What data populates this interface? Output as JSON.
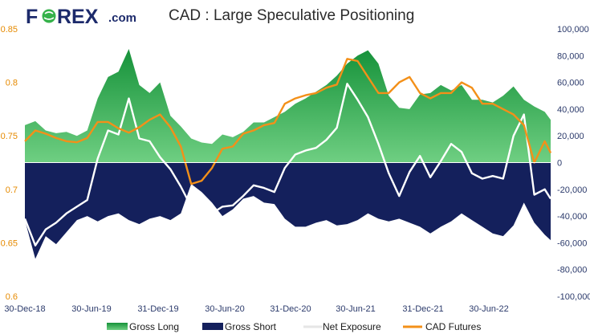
{
  "logo": {
    "text_before": "F",
    "text_after": "REX",
    "suffix": ".com"
  },
  "colors": {
    "logo_blue": "#1c2a6b",
    "logo_green": "#35b24a",
    "long_green": "#16923a",
    "long_green_light": "#6fcf82",
    "short_navy": "#14205c",
    "net_white": "#ffffff",
    "futures_orange": "#f39019",
    "left_axis": "#e68a00",
    "right_axis": "#2b3a6b",
    "date_axis": "#2b3a6b"
  },
  "chart_data": {
    "type": "area",
    "title": "CAD : Large Speculative Positioning",
    "x_tick_labels": [
      "30-Dec-18",
      "30-Jun-19",
      "31-Dec-19",
      "30-Jun-20",
      "31-Dec-20",
      "30-Jun-21",
      "31-Dec-21",
      "30-Jun-22"
    ],
    "x_range": [
      "2018-12-30",
      "2022-11-15"
    ],
    "left_axis": {
      "label": "",
      "ticks": [
        "0.85",
        "0.8",
        "0.75",
        "0.7",
        "0.65",
        "0.6"
      ],
      "ylim": [
        0.6,
        0.85
      ]
    },
    "right_axis": {
      "label": "",
      "ticks": [
        "100,000",
        "80,000",
        "60,000",
        "40,000",
        "20,000",
        "0",
        "-20,000",
        "-40,000",
        "-60,000",
        "-80,000",
        "-100,000"
      ],
      "ylim": [
        -100000,
        100000
      ]
    },
    "legend_position": "bottom",
    "x_dates": [
      "2018-12-30",
      "2019-01-27",
      "2019-02-24",
      "2019-03-24",
      "2019-04-21",
      "2019-05-19",
      "2019-06-16",
      "2019-07-14",
      "2019-08-11",
      "2019-09-08",
      "2019-10-06",
      "2019-11-03",
      "2019-12-01",
      "2019-12-29",
      "2020-01-26",
      "2020-02-23",
      "2020-03-22",
      "2020-04-19",
      "2020-05-17",
      "2020-06-14",
      "2020-07-12",
      "2020-08-09",
      "2020-09-06",
      "2020-10-04",
      "2020-11-01",
      "2020-11-29",
      "2020-12-27",
      "2021-01-24",
      "2021-02-21",
      "2021-03-21",
      "2021-04-18",
      "2021-05-16",
      "2021-06-13",
      "2021-07-11",
      "2021-08-08",
      "2021-09-05",
      "2021-10-03",
      "2021-10-31",
      "2021-11-28",
      "2021-12-26",
      "2022-01-23",
      "2022-02-20",
      "2022-03-20",
      "2022-04-17",
      "2022-05-15",
      "2022-06-12",
      "2022-07-10",
      "2022-08-07",
      "2022-09-04",
      "2022-10-02",
      "2022-10-30",
      "2022-11-15"
    ],
    "series": [
      {
        "name": "Gross Long",
        "axis": "right",
        "values": [
          28000,
          31000,
          24000,
          22000,
          23000,
          20000,
          24000,
          48000,
          64000,
          68000,
          85000,
          58000,
          52000,
          60000,
          35000,
          27000,
          18000,
          15000,
          14000,
          21000,
          19000,
          23000,
          30000,
          30000,
          34000,
          38000,
          44000,
          48000,
          53000,
          58000,
          65000,
          74000,
          80000,
          84000,
          74000,
          50000,
          41000,
          40000,
          51000,
          52000,
          58000,
          54000,
          58000,
          47000,
          47000,
          45000,
          50000,
          57000,
          47000,
          42000,
          38000,
          32000
        ]
      },
      {
        "name": "Gross Short",
        "axis": "right",
        "values": [
          -43000,
          -72000,
          -55000,
          -61000,
          -52000,
          -43000,
          -40000,
          -44000,
          -40000,
          -38000,
          -43000,
          -46000,
          -42000,
          -40000,
          -43000,
          -38000,
          -16000,
          -22000,
          -30000,
          -40000,
          -35000,
          -27000,
          -25000,
          -30000,
          -31000,
          -42000,
          -48000,
          -48000,
          -45000,
          -43000,
          -47000,
          -46000,
          -43000,
          -38000,
          -42000,
          -44000,
          -42000,
          -45000,
          -48000,
          -53000,
          -48000,
          -44000,
          -38000,
          -43000,
          -48000,
          -53000,
          -55000,
          -47000,
          -30000,
          -45000,
          -54000,
          -58000
        ]
      },
      {
        "name": "Net Exposure",
        "axis": "right",
        "values": [
          -42000,
          -62000,
          -50000,
          -45000,
          -38000,
          -33000,
          -28000,
          3000,
          24000,
          21000,
          48000,
          18000,
          16000,
          4000,
          -5000,
          -18000,
          -33000,
          -35000,
          -38000,
          -33000,
          -32000,
          -25000,
          -17000,
          -19000,
          -22000,
          -4000,
          6000,
          9000,
          11000,
          17000,
          26000,
          59000,
          47000,
          34000,
          14000,
          -8000,
          -25000,
          -7000,
          5000,
          -11000,
          1000,
          14000,
          8000,
          -8000,
          -12000,
          -10000,
          -12000,
          20000,
          36000,
          -24000,
          -20000,
          -27000
        ]
      },
      {
        "name": "CAD Futures",
        "axis": "left",
        "values": [
          0.745,
          0.755,
          0.752,
          0.748,
          0.745,
          0.744,
          0.748,
          0.763,
          0.763,
          0.757,
          0.753,
          0.758,
          0.765,
          0.77,
          0.758,
          0.74,
          0.705,
          0.708,
          0.72,
          0.738,
          0.74,
          0.752,
          0.755,
          0.76,
          0.762,
          0.78,
          0.785,
          0.788,
          0.79,
          0.795,
          0.798,
          0.822,
          0.82,
          0.805,
          0.79,
          0.79,
          0.8,
          0.805,
          0.79,
          0.785,
          0.79,
          0.79,
          0.8,
          0.795,
          0.78,
          0.78,
          0.775,
          0.77,
          0.76,
          0.725,
          0.745,
          0.734
        ]
      }
    ]
  }
}
